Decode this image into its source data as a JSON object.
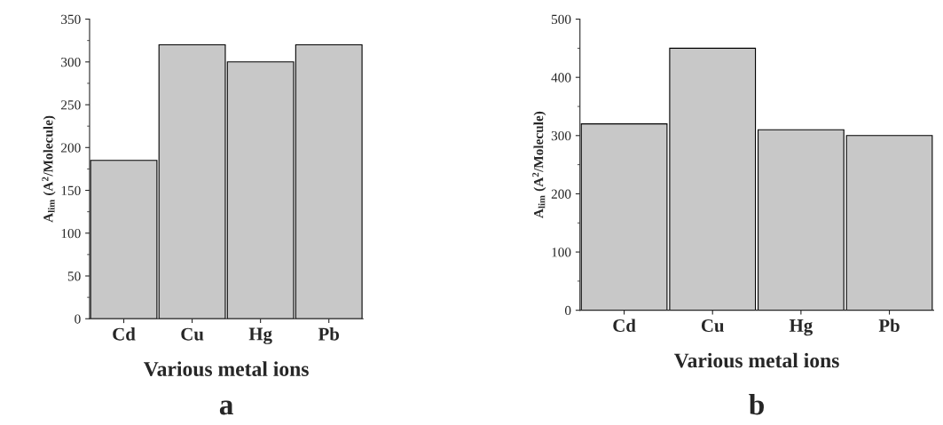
{
  "chart_data": [
    {
      "type": "bar",
      "categories": [
        "Cd",
        "Cu",
        "Hg",
        "Pb"
      ],
      "values": [
        185,
        320,
        300,
        320
      ],
      "color": "#c8c8c8",
      "xlabel": "Various metal ions",
      "ylabel": "A$_{lim}$ (A$^{2}$/Molecule)",
      "ylim": [
        0,
        350
      ],
      "yticks": [
        0,
        50,
        100,
        150,
        200,
        250,
        300,
        350
      ],
      "grid": false,
      "annotations": [
        "a"
      ]
    },
    {
      "type": "bar",
      "categories": [
        "Cd",
        "Cu",
        "Hg",
        "Pb"
      ],
      "values": [
        320,
        450,
        310,
        300
      ],
      "color": "#c8c8c8",
      "xlabel": "Various metal ions",
      "ylabel": "A$_{lim}$ (A$^{2}$/Molecule)",
      "ylim": [
        0,
        500
      ],
      "yticks": [
        0,
        100,
        200,
        300,
        400,
        500
      ],
      "grid": false,
      "annotations": [
        "b"
      ]
    }
  ]
}
